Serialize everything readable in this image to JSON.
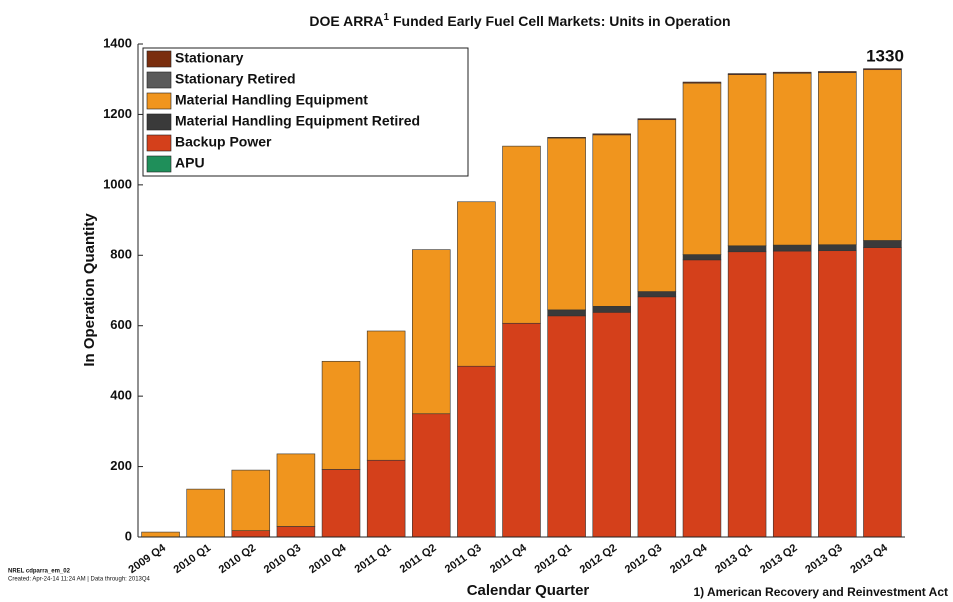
{
  "chart_data": {
    "type": "stacked_bar",
    "title": "DOE ARRA",
    "title_superscript": "1",
    "title_continued": " Funded Early Fuel Cell Markets:  Units in Operation",
    "x_label": "Calendar Quarter",
    "y_label": "In Operation Quantity",
    "annotation": "1330",
    "footnote": "1) American Recovery and Reinvestment Act",
    "source_note": "NREL cdparra_em_02",
    "created_note": "Created: Apr-24-14 11:24 AM | Data through: 2013Q4",
    "categories": [
      "2009 Q4",
      "2010 Q1",
      "2010 Q2",
      "2010 Q3",
      "2010 Q4",
      "2011 Q1",
      "2011 Q2",
      "2011 Q3",
      "2011 Q4",
      "2012 Q1",
      "2012 Q2",
      "2012 Q3",
      "2012 Q4",
      "2013 Q1",
      "2013 Q2",
      "2013 Q3",
      "2013 Q4"
    ],
    "series": [
      {
        "name": "Stationary",
        "color": "#7a2e0e",
        "values": [
          0,
          0,
          0,
          0,
          0,
          0,
          0,
          0,
          0,
          2,
          3,
          3,
          3,
          3,
          3,
          3,
          3
        ]
      },
      {
        "name": "Stationary Retired",
        "color": "#5a5a5a",
        "values": [
          0,
          0,
          0,
          0,
          0,
          0,
          0,
          0,
          0,
          0,
          0,
          0,
          0,
          0,
          0,
          0,
          0
        ]
      },
      {
        "name": "Material Handling Equipment",
        "color": "#f0951e",
        "values": [
          14,
          136,
          172,
          206,
          307,
          367,
          466,
          467,
          503,
          488,
          487,
          488,
          487,
          486,
          488,
          489,
          485
        ]
      },
      {
        "name": "Material Handling Equipment Retired",
        "color": "#3a3a3a",
        "values": [
          0,
          0,
          0,
          0,
          0,
          0,
          0,
          0,
          0,
          17,
          17,
          15,
          15,
          17,
          17,
          17,
          20
        ]
      },
      {
        "name": "Backup Power",
        "color": "#d4401b",
        "values": [
          0,
          0,
          18,
          30,
          192,
          218,
          350,
          485,
          607,
          628,
          638,
          682,
          787,
          810,
          812,
          813,
          822
        ]
      },
      {
        "name": "APU",
        "color": "#1f8f5a",
        "values": [
          0,
          0,
          0,
          0,
          0,
          0,
          0,
          0,
          0,
          0,
          0,
          0,
          0,
          0,
          0,
          0,
          0
        ]
      }
    ],
    "ylim": [
      0,
      1400
    ],
    "yticks": [
      0,
      200,
      400,
      600,
      800,
      1000,
      1200,
      1400
    ],
    "grid": false,
    "legend": "upper-left"
  }
}
